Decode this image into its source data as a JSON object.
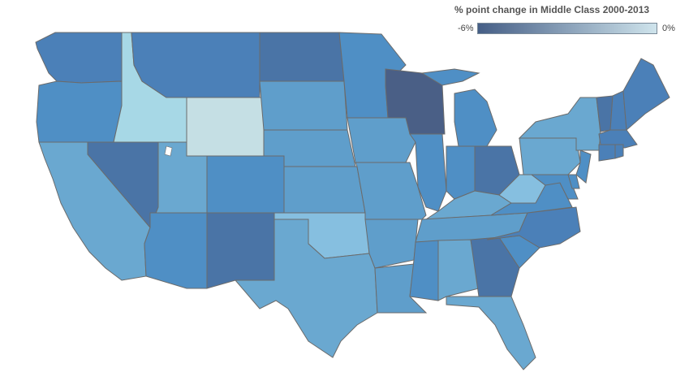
{
  "legend": {
    "title": "% point change in Middle Class 2000-2013",
    "min_label": "-6%",
    "max_label": "0%",
    "color_low": "#455e86",
    "color_high": "#cfe4ec"
  },
  "colors": {
    "darkest": "#4a5f86",
    "dark": "#4a74a6",
    "mid_dark": "#4b80b8",
    "mid": "#4f8fc5",
    "light_mid": "#5f9ecb",
    "light": "#6aa8d0",
    "lighter": "#86bfe0",
    "lightest_blue": "#a7d8e6",
    "pale": "#c5dfe4"
  },
  "states": [
    {
      "id": "WA",
      "color_key": "mid_dark"
    },
    {
      "id": "OR",
      "color_key": "mid"
    },
    {
      "id": "CA",
      "color_key": "light"
    },
    {
      "id": "ID",
      "color_key": "lightest_blue"
    },
    {
      "id": "NV",
      "color_key": "dark"
    },
    {
      "id": "MT",
      "color_key": "mid_dark"
    },
    {
      "id": "WY",
      "color_key": "pale"
    },
    {
      "id": "UT",
      "color_key": "light"
    },
    {
      "id": "AZ",
      "color_key": "mid"
    },
    {
      "id": "CO",
      "color_key": "mid"
    },
    {
      "id": "NM",
      "color_key": "dark"
    },
    {
      "id": "ND",
      "color_key": "dark"
    },
    {
      "id": "SD",
      "color_key": "light_mid"
    },
    {
      "id": "NE",
      "color_key": "light_mid"
    },
    {
      "id": "KS",
      "color_key": "light_mid"
    },
    {
      "id": "OK",
      "color_key": "lighter"
    },
    {
      "id": "TX",
      "color_key": "light"
    },
    {
      "id": "MN",
      "color_key": "mid"
    },
    {
      "id": "IA",
      "color_key": "light_mid"
    },
    {
      "id": "MO",
      "color_key": "light_mid"
    },
    {
      "id": "AR",
      "color_key": "light_mid"
    },
    {
      "id": "LA",
      "color_key": "light_mid"
    },
    {
      "id": "WI",
      "color_key": "darkest"
    },
    {
      "id": "IL",
      "color_key": "mid"
    },
    {
      "id": "MI",
      "color_key": "mid"
    },
    {
      "id": "IN",
      "color_key": "mid"
    },
    {
      "id": "OH",
      "color_key": "dark"
    },
    {
      "id": "KY",
      "color_key": "light"
    },
    {
      "id": "TN",
      "color_key": "light_mid"
    },
    {
      "id": "MS",
      "color_key": "mid"
    },
    {
      "id": "AL",
      "color_key": "light"
    },
    {
      "id": "GA",
      "color_key": "dark"
    },
    {
      "id": "FL",
      "color_key": "light"
    },
    {
      "id": "SC",
      "color_key": "mid"
    },
    {
      "id": "NC",
      "color_key": "mid_dark"
    },
    {
      "id": "VA",
      "color_key": "mid"
    },
    {
      "id": "WV",
      "color_key": "lighter"
    },
    {
      "id": "PA",
      "color_key": "light"
    },
    {
      "id": "NY",
      "color_key": "light"
    },
    {
      "id": "NJ",
      "color_key": "mid"
    },
    {
      "id": "MD",
      "color_key": "mid"
    },
    {
      "id": "DE",
      "color_key": "mid"
    },
    {
      "id": "VT",
      "color_key": "dark"
    },
    {
      "id": "NH",
      "color_key": "mid_dark"
    },
    {
      "id": "ME",
      "color_key": "mid_dark"
    },
    {
      "id": "MA",
      "color_key": "mid_dark"
    },
    {
      "id": "CT",
      "color_key": "mid_dark"
    },
    {
      "id": "RI",
      "color_key": "mid_dark"
    }
  ]
}
